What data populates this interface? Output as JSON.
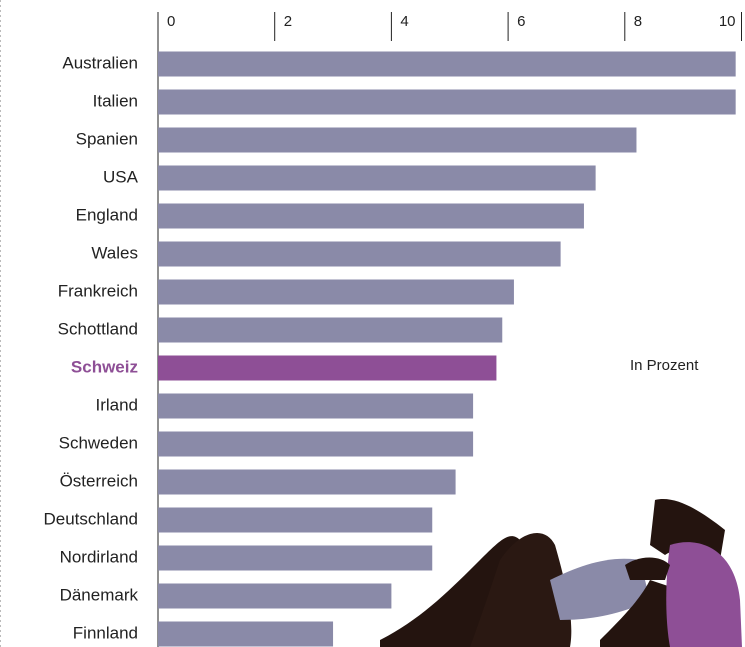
{
  "chart_data": {
    "type": "bar",
    "orientation": "horizontal",
    "annotation": "In Prozent",
    "categories": [
      "Australien",
      "Italien",
      "Spanien",
      "USA",
      "England",
      "Wales",
      "Frankreich",
      "Schottland",
      "Schweiz",
      "Irland",
      "Schweden",
      "Österreich",
      "Deutschland",
      "Nordirland",
      "Dänemark",
      "Finnland"
    ],
    "values": [
      9.9,
      9.9,
      8.2,
      7.5,
      7.3,
      6.9,
      6.1,
      5.9,
      5.8,
      5.4,
      5.4,
      5.1,
      4.7,
      4.7,
      4.0,
      3.0
    ],
    "colors": [
      "#8a8aa8",
      "#8a8aa8",
      "#8a8aa8",
      "#8a8aa8",
      "#8a8aa8",
      "#8a8aa8",
      "#8a8aa8",
      "#8a8aa8",
      "#8e4f96",
      "#8a8aa8",
      "#8a8aa8",
      "#8a8aa8",
      "#8a8aa8",
      "#8a8aa8",
      "#8a8aa8",
      "#8a8aa8"
    ],
    "xlim": [
      0,
      10
    ],
    "xticks": [
      0,
      2,
      4,
      6,
      8,
      10
    ]
  }
}
